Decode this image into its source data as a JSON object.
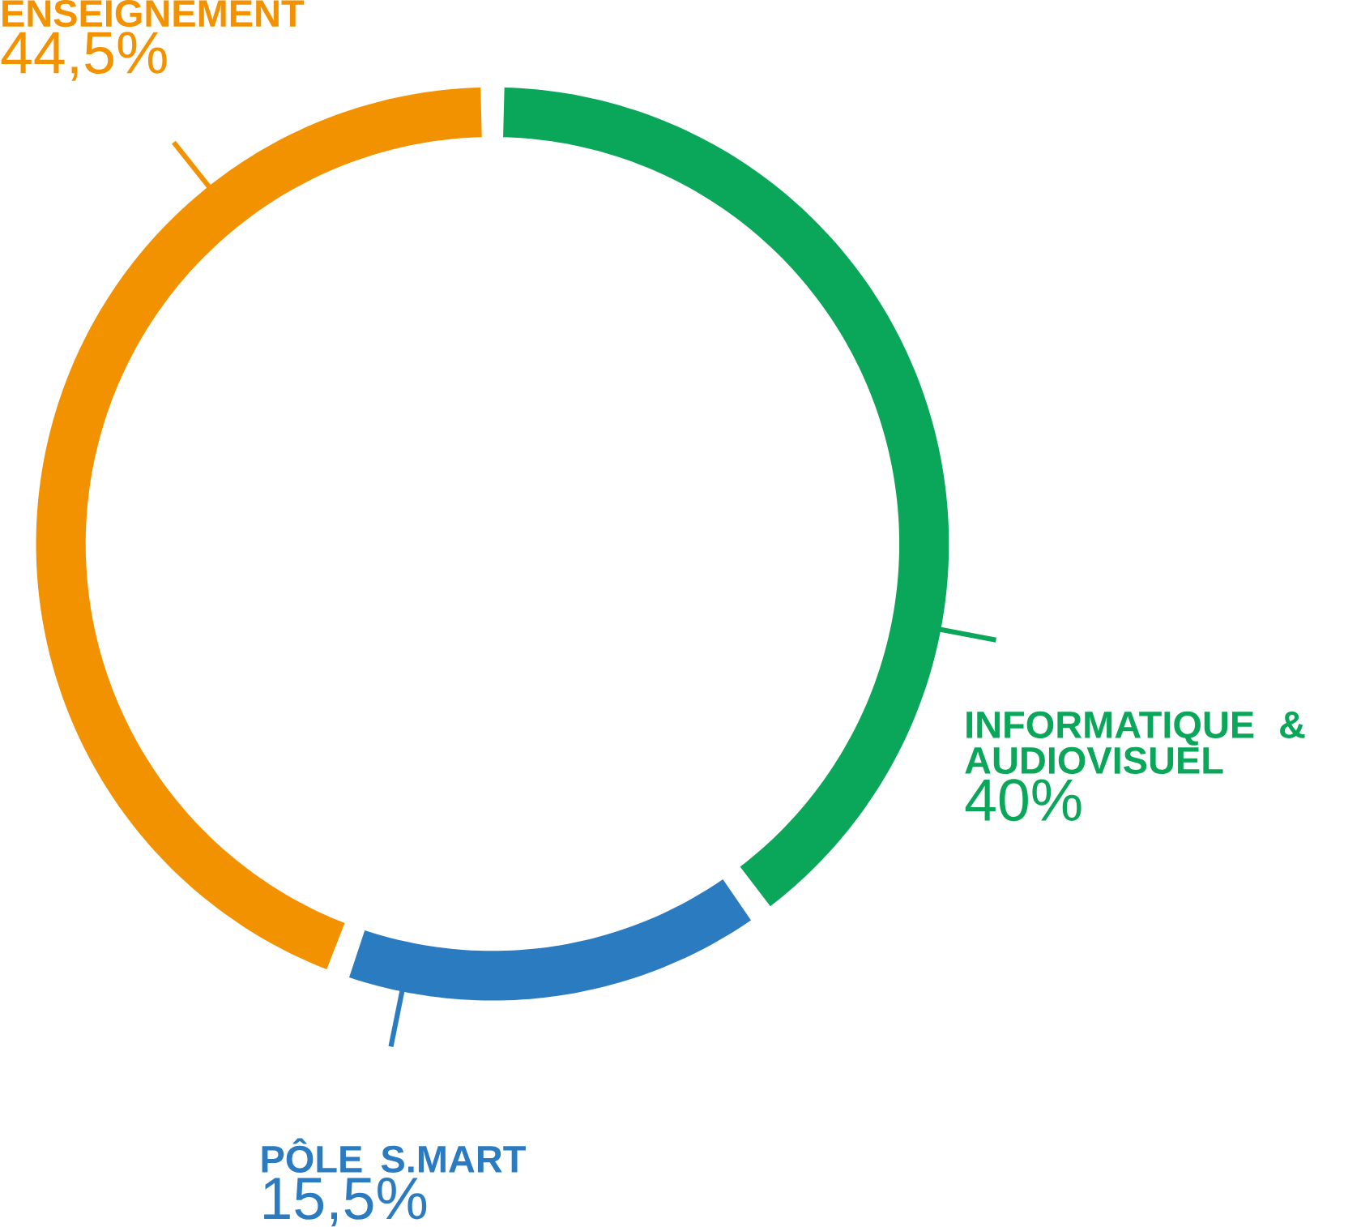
{
  "chart_data": {
    "type": "donut",
    "categories": [
      "INFORMATIQUE & AUDIOVISUEL",
      "PÔLE S.MART",
      "ENSEIGNEMENT"
    ],
    "values": [
      40,
      15.5,
      44.5
    ],
    "value_labels": [
      "40%",
      "15,5%",
      "44,5%"
    ],
    "colors": [
      "#0aa65a",
      "#2b7bc0",
      "#f39200"
    ]
  }
}
